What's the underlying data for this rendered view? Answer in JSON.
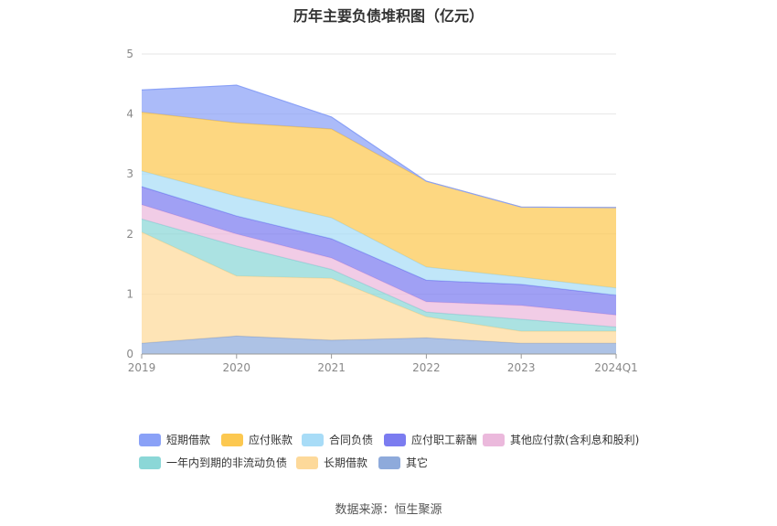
{
  "source_note": "数据来源：恒生聚源",
  "chart_data": {
    "type": "area",
    "stacked": true,
    "title": "历年主要负债堆积图（亿元）",
    "categories": [
      "2019",
      "2020",
      "2021",
      "2022",
      "2023",
      "2024Q1"
    ],
    "ylim": [
      0,
      5
    ],
    "yticks": [
      "0",
      "1",
      "2",
      "3",
      "4",
      "5"
    ],
    "grid": true,
    "legend_position": "bottom",
    "series": [
      {
        "name": "其它",
        "color": "#8eaadb",
        "values": [
          0.18,
          0.3,
          0.23,
          0.27,
          0.18,
          0.18
        ]
      },
      {
        "name": "长期借款",
        "color": "#fdd99a",
        "values": [
          1.85,
          1.0,
          1.03,
          0.35,
          0.2,
          0.2
        ]
      },
      {
        "name": "一年内到期的非流动负债",
        "color": "#8bd7d7",
        "values": [
          0.22,
          0.5,
          0.15,
          0.08,
          0.2,
          0.07
        ]
      },
      {
        "name": "其他应付款(含利息和股利)",
        "color": "#ebb9dc",
        "values": [
          0.24,
          0.2,
          0.19,
          0.17,
          0.23,
          0.2
        ]
      },
      {
        "name": "应付职工薪酬",
        "color": "#7b7cf0",
        "values": [
          0.3,
          0.3,
          0.32,
          0.36,
          0.35,
          0.33
        ]
      },
      {
        "name": "合同负债",
        "color": "#a8dcf7",
        "values": [
          0.26,
          0.33,
          0.35,
          0.22,
          0.12,
          0.12
        ]
      },
      {
        "name": "应付账款",
        "color": "#fcc850",
        "values": [
          0.98,
          1.22,
          1.48,
          1.43,
          1.17,
          1.34
        ]
      },
      {
        "name": "短期借款",
        "color": "#8aa1f7",
        "values": [
          0.37,
          0.63,
          0.2,
          0.0,
          0.0,
          0.0
        ]
      }
    ],
    "legend_order": [
      "短期借款",
      "应付账款",
      "合同负债",
      "应付职工薪酬",
      "其他应付款(含利息和股利)",
      "一年内到期的非流动负债",
      "长期借款",
      "其它"
    ]
  }
}
